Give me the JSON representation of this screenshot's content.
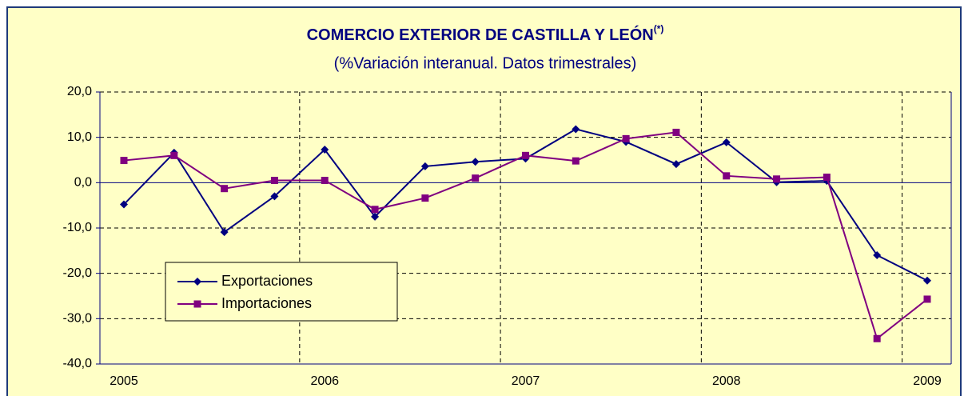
{
  "chart_data": {
    "type": "line",
    "title": "COMERCIO EXTERIOR DE CASTILLA Y LEÓN",
    "title_note": "(*)",
    "subtitle": "(%Variación interanual. Datos trimestrales)",
    "categories": [
      "2005",
      null,
      null,
      null,
      "2006",
      null,
      null,
      null,
      "2007",
      null,
      null,
      null,
      "2008",
      null,
      null,
      null,
      "2009"
    ],
    "series": [
      {
        "name": "Exportaciones",
        "color": "#000080",
        "marker": "diamond",
        "values": [
          -4.8,
          6.6,
          -10.9,
          -3.0,
          7.3,
          -7.5,
          3.6,
          4.6,
          5.3,
          11.8,
          9.0,
          4.1,
          8.9,
          0.1,
          0.4,
          -16.0,
          -21.6
        ]
      },
      {
        "name": "Importaciones",
        "color": "#800080",
        "marker": "square",
        "values": [
          4.9,
          6.0,
          -1.3,
          0.5,
          0.5,
          -5.9,
          -3.4,
          1.0,
          6.0,
          4.8,
          9.7,
          11.1,
          1.5,
          0.8,
          1.2,
          -34.4,
          -25.7
        ]
      }
    ],
    "ylim": [
      -40,
      20
    ],
    "yticks": [
      {
        "value": -40,
        "label": "-40,0"
      },
      {
        "value": -30,
        "label": "-30,0"
      },
      {
        "value": -20,
        "label": "-20,0"
      },
      {
        "value": -10,
        "label": "-10,0"
      },
      {
        "value": 0,
        "label": "0,0"
      },
      {
        "value": 10,
        "label": "10,0"
      },
      {
        "value": 20,
        "label": "20,0"
      }
    ],
    "grid": true,
    "legend": "lower left"
  }
}
